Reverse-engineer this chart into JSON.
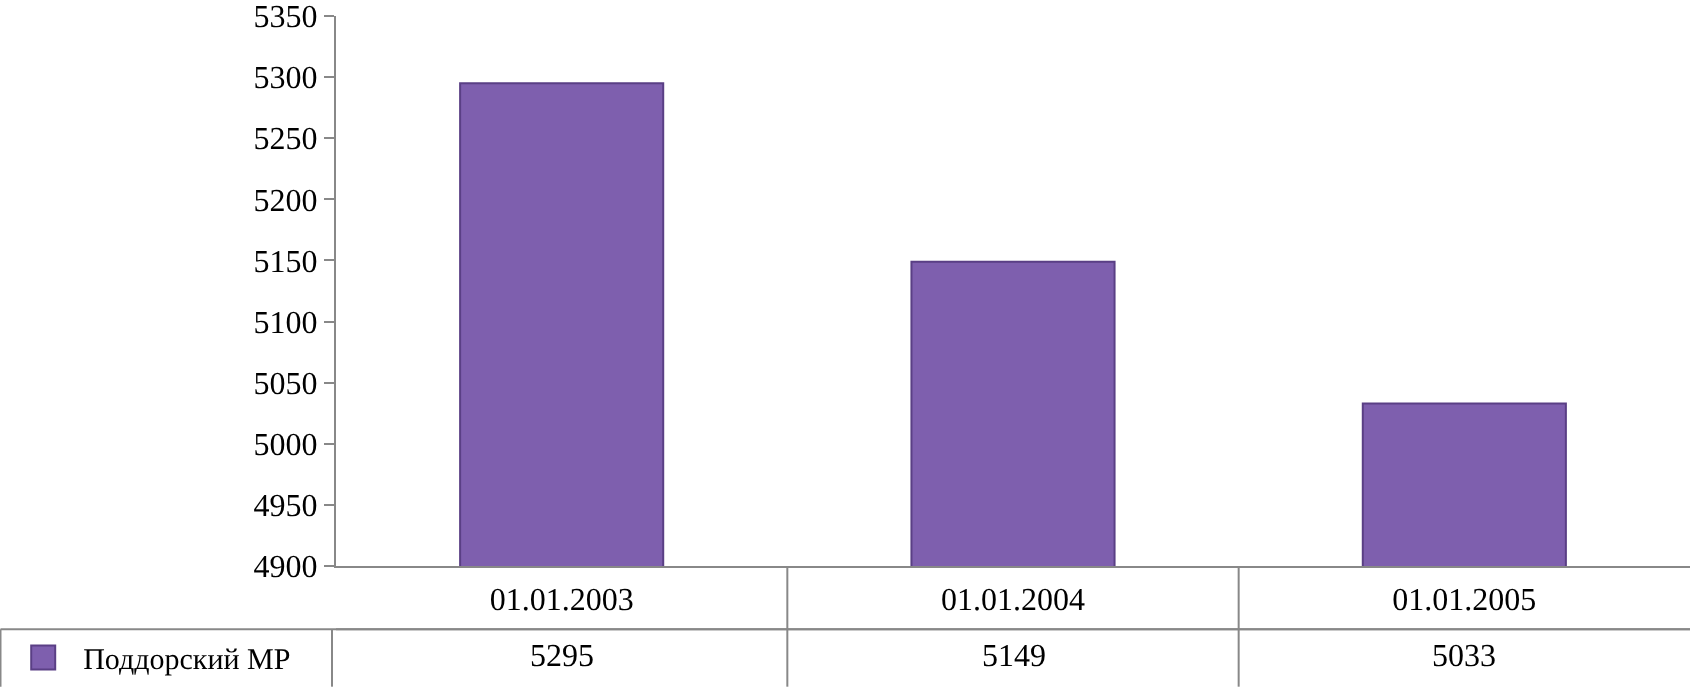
{
  "chart_data": {
    "type": "bar",
    "categories": [
      "01.01.2003",
      "01.01.2004",
      "01.01.2005"
    ],
    "series": [
      {
        "name": "Поддорский МР",
        "color": "#7e5fae",
        "values": [
          5295,
          5149,
          5033
        ]
      }
    ],
    "ylim": [
      4900,
      5350
    ],
    "yticks": [
      4900,
      4950,
      5000,
      5050,
      5100,
      5150,
      5200,
      5250,
      5300,
      5350
    ],
    "grid": false,
    "legend": "bottom left",
    "data_labels": true
  }
}
